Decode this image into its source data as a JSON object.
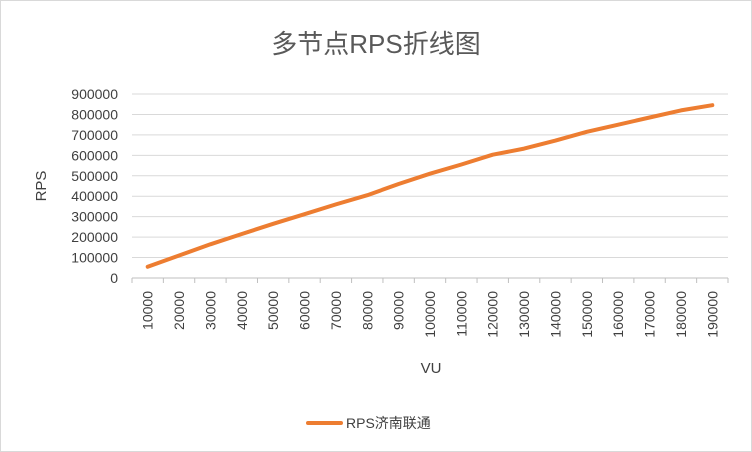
{
  "chart_data": {
    "type": "line",
    "title": "多节点RPS折线图",
    "xlabel": "VU",
    "ylabel": "RPS",
    "x": [
      "10000",
      "20000",
      "30000",
      "40000",
      "50000",
      "60000",
      "70000",
      "80000",
      "90000",
      "100000",
      "110000",
      "120000",
      "130000",
      "140000",
      "150000",
      "160000",
      "170000",
      "180000",
      "190000"
    ],
    "series": [
      {
        "name": "RPS济南联通",
        "color": "#ED7D31",
        "values": [
          55000,
          110000,
          165000,
          215000,
          265000,
          312000,
          360000,
          405000,
          460000,
          510000,
          555000,
          603000,
          633000,
          672000,
          715000,
          750000,
          785000,
          820000,
          845000
        ]
      }
    ],
    "ylim": [
      0,
      900000
    ],
    "yticks": [
      "0",
      "100000",
      "200000",
      "300000",
      "400000",
      "500000",
      "600000",
      "700000",
      "800000",
      "900000"
    ],
    "grid": true,
    "legend_position": "bottom"
  },
  "colors": {
    "gridline": "#d9d9d9",
    "axis": "#bfbfbf",
    "text": "#404040",
    "title": "#595959"
  }
}
